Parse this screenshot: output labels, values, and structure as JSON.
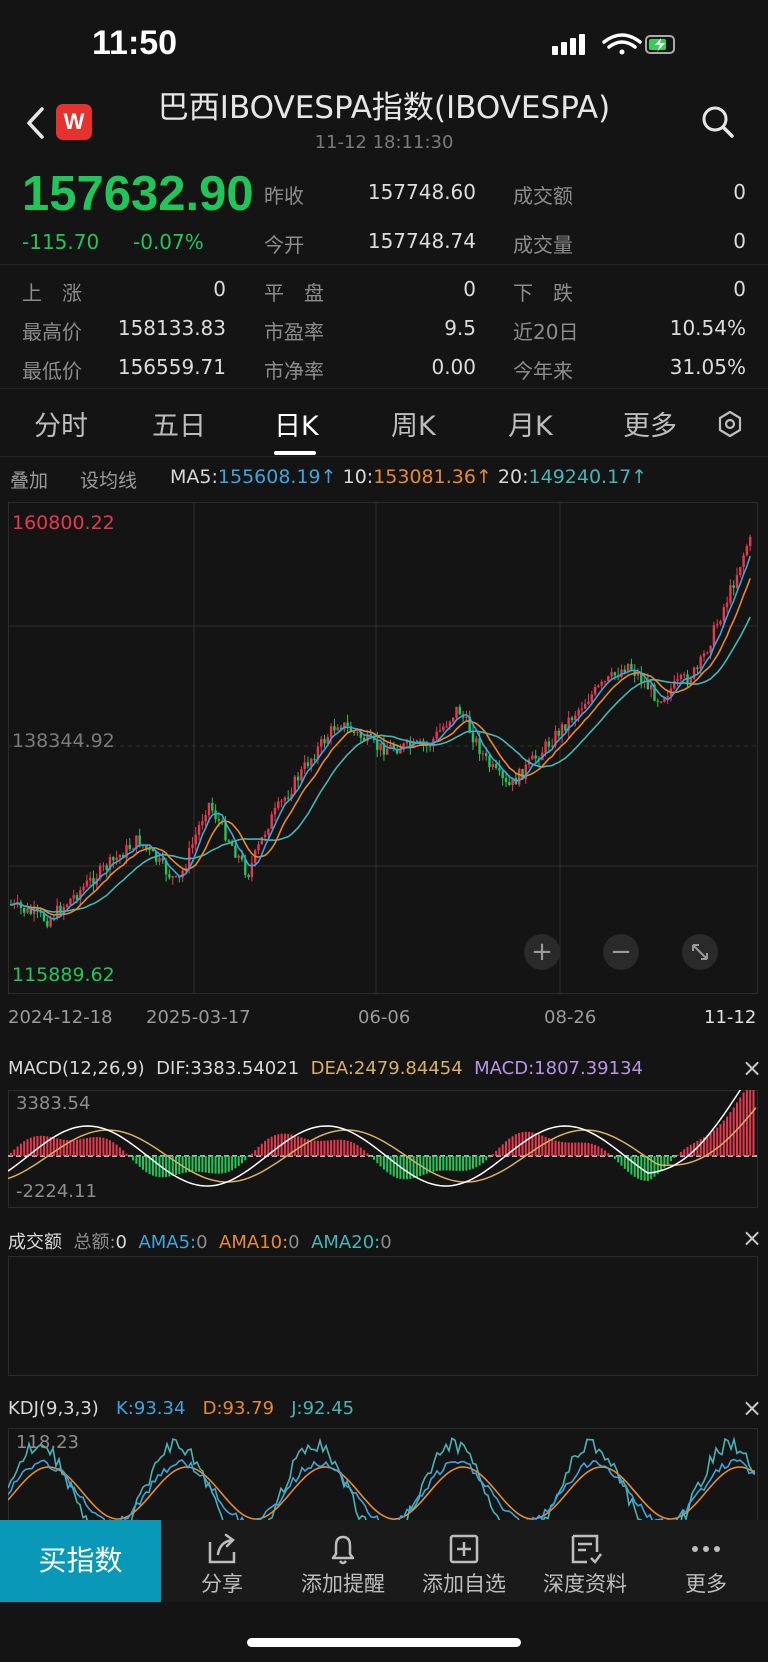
{
  "status": {
    "time": "11:50"
  },
  "nav": {
    "back_icon": "chevron-left-icon",
    "logo_text": "W",
    "title": "巴西IBOVESPA指数(IBOVESPA)",
    "subtitle": "11-12 18:11:30",
    "search_icon": "search-icon"
  },
  "quote": {
    "price": "157632.90",
    "change": "-115.70",
    "change_pct": "-0.07%",
    "stats": [
      {
        "label": "昨收",
        "value": "157748.60"
      },
      {
        "label": "成交额",
        "value": "0"
      },
      {
        "label": "今开",
        "value": "157748.74"
      },
      {
        "label": "成交量",
        "value": "0"
      },
      {
        "label": "上　涨",
        "value": "0"
      },
      {
        "label": "平　盘",
        "value": "0"
      },
      {
        "label": "下　跌",
        "value": "0"
      },
      {
        "label": "最高价",
        "value": "158133.83"
      },
      {
        "label": "市盈率",
        "value": "9.5"
      },
      {
        "label": "近20日",
        "value": "10.54%"
      },
      {
        "label": "最低价",
        "value": "156559.71"
      },
      {
        "label": "市净率",
        "value": "0.00"
      },
      {
        "label": "今年来",
        "value": "31.05%"
      }
    ]
  },
  "tabs": [
    "分时",
    "五日",
    "日K",
    "周K",
    "月K",
    "更多"
  ],
  "active_tab": "日K",
  "overlay": {
    "overlay_label": "叠加",
    "ma_setting_label": "设均线"
  },
  "ma": {
    "ma5_label": "MA5",
    "ma5_value": "155608.19↑",
    "ma10_label": "10",
    "ma10_value": "153081.36↑",
    "ma20_label": "20",
    "ma20_value": "149240.17↑"
  },
  "kline": {
    "y_top_label": "160800.22",
    "y_mid_label": "138344.92",
    "y_bottom_label": "115889.62",
    "x_labels": [
      "2024-12-18",
      "2025-03-17",
      "06-06",
      "08-26",
      "11-12"
    ]
  },
  "macd": {
    "name": "MACD(12,26,9)",
    "dif": "DIF:3383.54021",
    "dea": "DEA:2479.84454",
    "macd": "MACD:1807.39134",
    "y_top": "3383.54",
    "y_bottom": "-2224.11"
  },
  "volume": {
    "name": "成交额",
    "total_label": "总额:",
    "total_value": "0",
    "ama5_label": "AMA5:",
    "ama5_value": "0",
    "ama10_label": "AMA10:",
    "ama10_value": "0",
    "ama20_label": "AMA20:",
    "ama20_value": "0"
  },
  "kdj": {
    "name": "KDJ(9,3,3)",
    "k": "K:93.34",
    "d": "D:93.79",
    "j": "J:92.45",
    "y_top": "118.23"
  },
  "bottom": {
    "buy_label": "买指数",
    "items": [
      {
        "label": "分享",
        "icon": "share-icon"
      },
      {
        "label": "添加提醒",
        "icon": "bell-icon"
      },
      {
        "label": "添加自选",
        "icon": "plus-square-icon"
      },
      {
        "label": "深度资料",
        "icon": "document-icon"
      },
      {
        "label": "更多",
        "icon": "more-dots-icon"
      }
    ]
  },
  "colors": {
    "up": "#e8384f",
    "down": "#1fc75a",
    "ma5": "#3fa3dc",
    "ma10": "#e68a2e",
    "ma20": "#45b5b8",
    "dea": "#d8b060",
    "macd": "#b794e6",
    "buy": "#0a98b8"
  }
}
